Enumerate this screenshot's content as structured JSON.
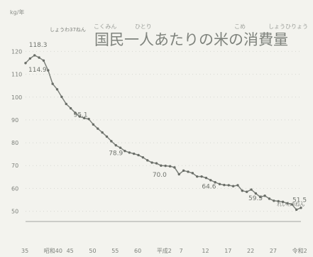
{
  "chart_data": {
    "type": "line",
    "title": "国民一人あたりの米の消費量",
    "title_ruby": [
      "こくみん",
      "ひとり",
      "こめ",
      "しょうひりょう"
    ],
    "ylabel": "kg/年",
    "x_ticks": [
      "35",
      "昭和40",
      "45",
      "50",
      "55",
      "60",
      "平成2",
      "7",
      "12",
      "17",
      "22",
      "27",
      "令和2"
    ],
    "y_ticks": [
      120,
      110,
      100,
      90,
      80,
      70,
      60,
      50
    ],
    "ylim": [
      48,
      122
    ],
    "grid": true,
    "series": [
      {
        "values": [
          [
            1960,
            114.9
          ],
          [
            1961,
            116.9
          ],
          [
            1962,
            118.3
          ],
          [
            1963,
            117.3
          ],
          [
            1964,
            116.0
          ],
          [
            1965,
            111.7
          ],
          [
            1966,
            105.8
          ],
          [
            1967,
            103.4
          ],
          [
            1968,
            100.1
          ],
          [
            1969,
            97.0
          ],
          [
            1970,
            95.1
          ],
          [
            1971,
            93.1
          ],
          [
            1972,
            91.5
          ],
          [
            1973,
            90.8
          ],
          [
            1974,
            90.4
          ],
          [
            1975,
            88.0
          ],
          [
            1976,
            86.2
          ],
          [
            1977,
            84.5
          ],
          [
            1978,
            82.7
          ],
          [
            1979,
            80.7
          ],
          [
            1980,
            78.9
          ],
          [
            1981,
            77.8
          ],
          [
            1982,
            76.4
          ],
          [
            1983,
            75.7
          ],
          [
            1984,
            75.2
          ],
          [
            1985,
            74.6
          ],
          [
            1986,
            73.6
          ],
          [
            1987,
            72.3
          ],
          [
            1988,
            71.3
          ],
          [
            1989,
            71.0
          ],
          [
            1990,
            70.0
          ],
          [
            1991,
            69.9
          ],
          [
            1992,
            69.7
          ],
          [
            1993,
            69.2
          ],
          [
            1994,
            66.2
          ],
          [
            1995,
            67.8
          ],
          [
            1996,
            67.3
          ],
          [
            1997,
            66.7
          ],
          [
            1998,
            65.2
          ],
          [
            1999,
            65.2
          ],
          [
            2000,
            64.6
          ],
          [
            2001,
            63.6
          ],
          [
            2002,
            62.7
          ],
          [
            2003,
            61.9
          ],
          [
            2004,
            61.5
          ],
          [
            2005,
            61.4
          ],
          [
            2006,
            61.0
          ],
          [
            2007,
            61.4
          ],
          [
            2008,
            59.0
          ],
          [
            2009,
            58.5
          ],
          [
            2010,
            59.5
          ],
          [
            2011,
            57.8
          ],
          [
            2012,
            56.2
          ],
          [
            2013,
            56.8
          ],
          [
            2014,
            55.5
          ],
          [
            2015,
            54.6
          ],
          [
            2016,
            54.4
          ],
          [
            2017,
            54.1
          ],
          [
            2018,
            53.5
          ],
          [
            2019,
            53.0
          ],
          [
            2020,
            50.7
          ],
          [
            2021,
            51.5
          ]
        ]
      }
    ],
    "annotations": [
      {
        "x": 1960,
        "y": 114.9,
        "text": "114.9"
      },
      {
        "x": 1962,
        "y": 118.3,
        "text": "118.3"
      },
      {
        "x": 1970,
        "y": 95.1,
        "text": "95.1"
      },
      {
        "x": 1980,
        "y": 78.9,
        "text": "78.9"
      },
      {
        "x": 1990,
        "y": 70.0,
        "text": "70.0"
      },
      {
        "x": 2000,
        "y": 64.6,
        "text": "64.6"
      },
      {
        "x": 2010,
        "y": 59.5,
        "text": "59.5"
      },
      {
        "x": 2021,
        "y": 51.5,
        "text": "51.5"
      }
    ],
    "annotation_notes": [
      "しょうわ37ねん",
      "れいわ3ねん"
    ]
  }
}
